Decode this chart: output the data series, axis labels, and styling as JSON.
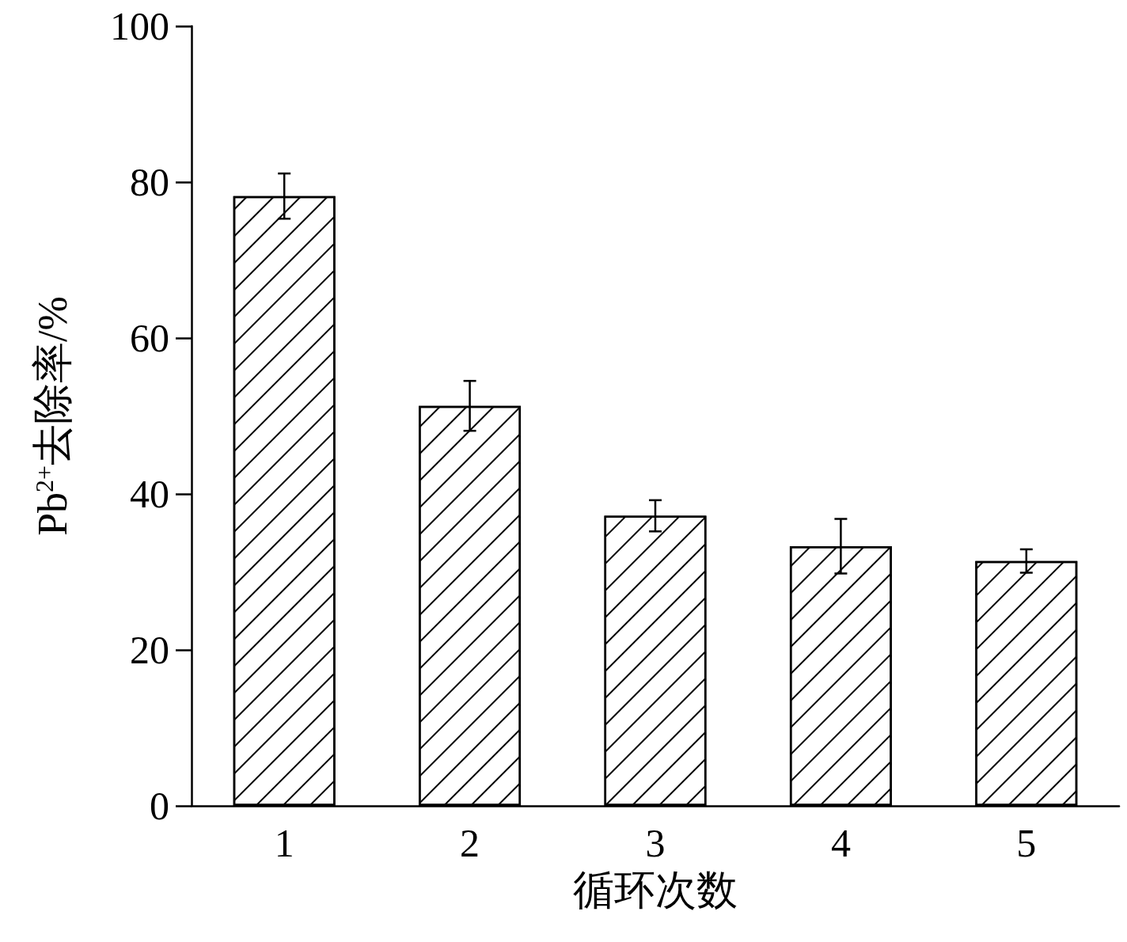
{
  "chart_data": {
    "type": "bar",
    "xlabel": "循环次数",
    "ylabel": "Pb$^{2+}$去除率/%",
    "categories": [
      "1",
      "2",
      "3",
      "4",
      "5"
    ],
    "values": [
      78.2,
      51.3,
      37.2,
      33.3,
      31.4
    ],
    "errors": [
      2.9,
      3.2,
      2.0,
      3.5,
      1.5
    ],
    "color": "#ffffff",
    "ylim": [
      0,
      100
    ],
    "yticks": [
      0,
      20,
      40,
      60,
      80,
      100
    ],
    "grid": false
  }
}
